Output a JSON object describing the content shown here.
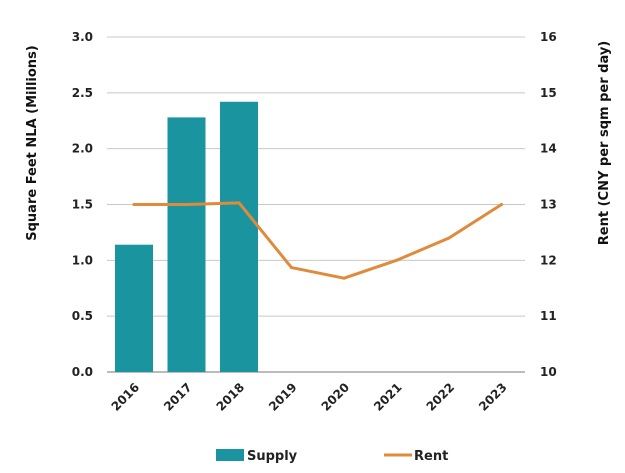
{
  "chart_data": {
    "type": "bar",
    "categories": [
      "2016",
      "2017",
      "2018",
      "2019",
      "2020",
      "2021",
      "2022",
      "2023"
    ],
    "series": [
      {
        "name": "Supply",
        "type": "bar",
        "axis": "left",
        "color": "#1a95a0",
        "values": [
          1.14,
          2.28,
          2.42,
          null,
          null,
          null,
          null,
          null
        ]
      },
      {
        "name": "Rent",
        "type": "line",
        "axis": "right",
        "color": "#e08a3c",
        "values": [
          13.0,
          13.0,
          13.03,
          11.87,
          11.68,
          12.0,
          12.4,
          13.0
        ]
      }
    ],
    "left_axis": {
      "label": "Square Feet NLA (Millions)",
      "ylim": [
        0,
        3.0
      ],
      "ticks": [
        "0.0",
        "0.5",
        "1.0",
        "1.5",
        "2.0",
        "2.5",
        "3.0"
      ]
    },
    "right_axis": {
      "label": "Rent (CNY per sqm per day)",
      "ylim": [
        10,
        16
      ],
      "ticks": [
        "10",
        "11",
        "12",
        "13",
        "14",
        "15",
        "16"
      ]
    },
    "grid": true,
    "legend": {
      "placement": "bottom",
      "entries": [
        "Supply",
        "Rent"
      ]
    }
  }
}
